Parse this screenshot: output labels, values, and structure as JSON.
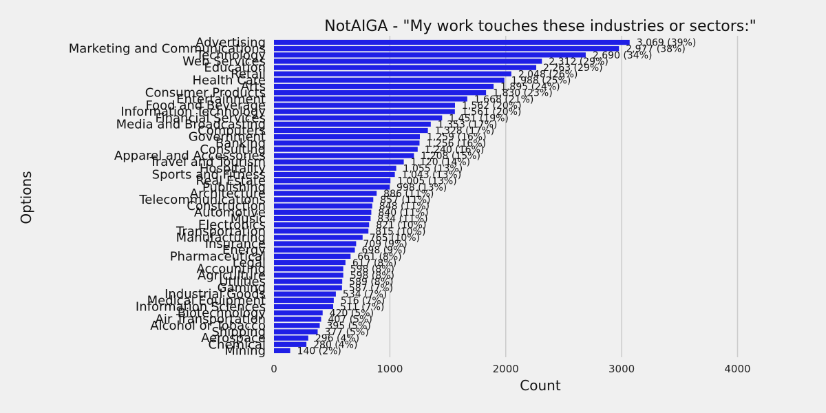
{
  "chart_data": {
    "type": "bar",
    "orientation": "horizontal",
    "title": "NotAIGA - \"My work touches these industries or sectors:\"",
    "xlabel": "Count",
    "ylabel": "Options",
    "xlim": [
      0,
      4300
    ],
    "xticks": [
      0,
      1000,
      2000,
      3000,
      4000
    ],
    "grid": "vertical",
    "bar_color": "#1f1fe6",
    "categories": [
      "Advertising",
      "Marketing and Communications",
      "Technology",
      "Web Services",
      "Education",
      "Retail",
      "Health Care",
      "Arts",
      "Consumer Products",
      "Entertainment",
      "Food and Beverage",
      "Information Technology",
      "Financial Services",
      "Media and Broadcasting",
      "Computers",
      "Government",
      "Banking",
      "Consulting",
      "Apparel and Accessories",
      "Travel and Tourism",
      "Hospitality",
      "Sports and Fitness",
      "Real Estate",
      "Publishing",
      "Architecture",
      "Telecommunications",
      "Construction",
      "Automotive",
      "Music",
      "Electronics",
      "Transportation",
      "Manufacturing",
      "Insurance",
      "Energy",
      "Pharmaceutical",
      "Legal",
      "Accounting",
      "Agriculture",
      "Utilities",
      "Gaming",
      "Industrial Goods",
      "Medical Equipment",
      "Information Sciences",
      "Biotechnology",
      "Air Transportation",
      "Alcohol or Tobacco",
      "Shipping",
      "Aerospace",
      "Chemical",
      "Mining"
    ],
    "values": [
      3069,
      2977,
      2690,
      2312,
      2263,
      2048,
      1988,
      1895,
      1830,
      1668,
      1562,
      1561,
      1451,
      1353,
      1328,
      1259,
      1256,
      1240,
      1208,
      1120,
      1055,
      1043,
      1005,
      998,
      886,
      857,
      848,
      840,
      834,
      821,
      815,
      765,
      709,
      698,
      661,
      617,
      598,
      598,
      589,
      587,
      534,
      516,
      511,
      420,
      407,
      395,
      377,
      296,
      280,
      140
    ],
    "data_labels": [
      "3,069 (39%)",
      "2,977 (38%)",
      "2,690 (34%)",
      "2,312 (29%)",
      "2,263 (29%)",
      "2,048 (26%)",
      "1,988 (25%)",
      "1,895 (24%)",
      "1,830 (23%)",
      "1,668 (21%)",
      "1,562 (20%)",
      "1,561 (20%)",
      "1,451 (19%)",
      "1,353 (17%)",
      "1,328 (17%)",
      "1,259 (16%)",
      "1,256 (16%)",
      "1,240 (16%)",
      "1,208 (15%)",
      "1,120 (14%)",
      "1,055 (13%)",
      "1,043 (13%)",
      "1,005 (13%)",
      "998 (13%)",
      "886 (11%)",
      "857 (11%)",
      "848 (11%)",
      "840 (11%)",
      "834 (11%)",
      "821 (10%)",
      "815 (10%)",
      "765 (10%)",
      "709 (9%)",
      "698 (9%)",
      "661 (8%)",
      "617 (8%)",
      "598 (8%)",
      "598 (8%)",
      "589 (8%)",
      "587 (7%)",
      "534 (7%)",
      "516 (7%)",
      "511 (7%)",
      "420 (5%)",
      "407 (5%)",
      "395 (5%)",
      "377 (5%)",
      "296 (4%)",
      "280 (4%)",
      "140 (2%)"
    ]
  }
}
